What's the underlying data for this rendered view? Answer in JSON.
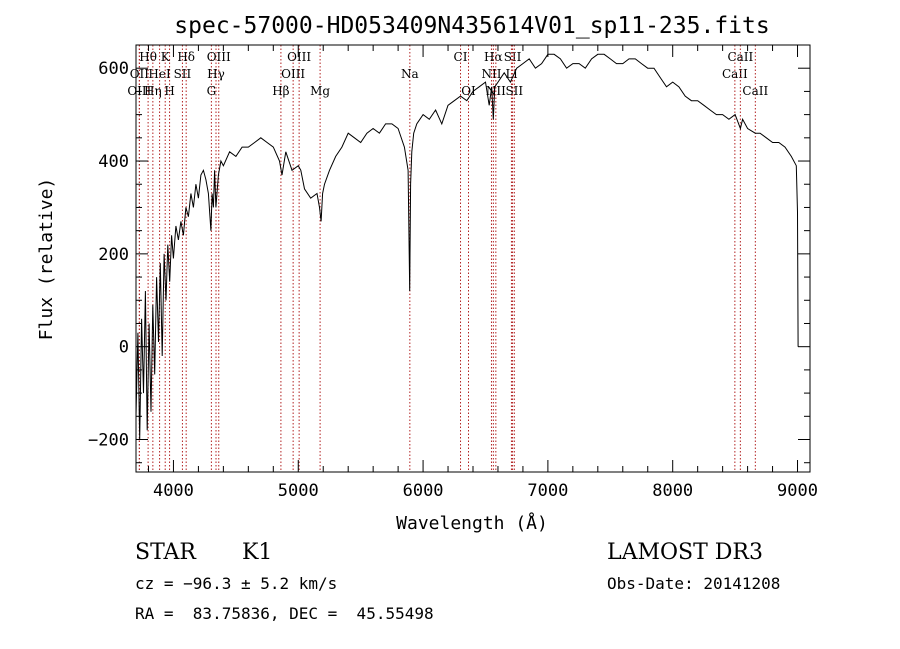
{
  "chart_data": {
    "type": "line",
    "title": "spec-57000-HD053409N435614V01_sp11-235.fits",
    "xlabel": "Wavelength (Å)",
    "ylabel": "Flux (relative)",
    "xlim": [
      3700,
      9100
    ],
    "ylim": [
      -270,
      650
    ],
    "xticks": [
      4000,
      5000,
      6000,
      7000,
      8000,
      9000
    ],
    "xtick_labels": [
      "4000",
      "5000",
      "6000",
      "7000",
      "8000",
      "9000"
    ],
    "yticks": [
      -200,
      0,
      200,
      400,
      600
    ],
    "ytick_labels": [
      "−200",
      "0",
      "200",
      "400",
      "600"
    ],
    "series": [
      {
        "name": "flux",
        "x": [
          3700,
          3715,
          3730,
          3745,
          3760,
          3775,
          3790,
          3805,
          3820,
          3835,
          3850,
          3865,
          3880,
          3895,
          3910,
          3925,
          3940,
          3955,
          3970,
          3985,
          4000,
          4020,
          4040,
          4060,
          4080,
          4100,
          4120,
          4140,
          4160,
          4180,
          4200,
          4220,
          4240,
          4260,
          4280,
          4300,
          4310,
          4320,
          4330,
          4340,
          4360,
          4380,
          4400,
          4450,
          4500,
          4550,
          4600,
          4650,
          4700,
          4750,
          4800,
          4850,
          4870,
          4900,
          4950,
          5000,
          5020,
          5050,
          5100,
          5150,
          5170,
          5183,
          5195,
          5210,
          5250,
          5300,
          5350,
          5400,
          5450,
          5500,
          5550,
          5600,
          5650,
          5700,
          5750,
          5800,
          5850,
          5880,
          5893,
          5900,
          5910,
          5925,
          5950,
          6000,
          6050,
          6100,
          6150,
          6200,
          6250,
          6300,
          6350,
          6400,
          6450,
          6500,
          6530,
          6550,
          6563,
          6575,
          6600,
          6650,
          6700,
          6750,
          6800,
          6850,
          6900,
          6950,
          7000,
          7050,
          7100,
          7150,
          7200,
          7250,
          7300,
          7350,
          7400,
          7450,
          7500,
          7550,
          7600,
          7650,
          7700,
          7750,
          7800,
          7850,
          7900,
          7950,
          8000,
          8050,
          8100,
          8150,
          8200,
          8250,
          8300,
          8350,
          8400,
          8450,
          8500,
          8542,
          8560,
          8600,
          8662,
          8700,
          8750,
          8800,
          8850,
          8900,
          8950,
          8990,
          9000,
          9005
        ],
        "y": [
          -150,
          30,
          -200,
          60,
          -100,
          120,
          -180,
          50,
          -140,
          90,
          -60,
          150,
          10,
          180,
          -20,
          200,
          100,
          220,
          140,
          240,
          190,
          260,
          230,
          270,
          240,
          300,
          280,
          330,
          300,
          350,
          320,
          370,
          380,
          360,
          330,
          250,
          330,
          300,
          380,
          300,
          370,
          400,
          390,
          420,
          410,
          430,
          430,
          440,
          450,
          440,
          430,
          400,
          370,
          420,
          380,
          390,
          380,
          340,
          320,
          330,
          300,
          270,
          330,
          350,
          380,
          410,
          430,
          460,
          450,
          440,
          460,
          470,
          460,
          480,
          480,
          470,
          430,
          380,
          120,
          350,
          420,
          460,
          480,
          500,
          490,
          510,
          480,
          520,
          530,
          540,
          530,
          550,
          560,
          570,
          520,
          560,
          490,
          560,
          570,
          590,
          570,
          600,
          610,
          620,
          600,
          610,
          630,
          630,
          620,
          600,
          610,
          610,
          600,
          620,
          630,
          630,
          620,
          610,
          610,
          620,
          620,
          610,
          600,
          600,
          580,
          560,
          570,
          560,
          540,
          530,
          530,
          520,
          510,
          500,
          500,
          490,
          500,
          470,
          490,
          470,
          460,
          460,
          450,
          440,
          440,
          430,
          410,
          390,
          290,
          0
        ]
      }
    ],
    "lines": [
      {
        "label": "OII",
        "wavelength": 3727,
        "row": 2
      },
      {
        "label": "OIII",
        "wavelength": 3727,
        "row": 3
      },
      {
        "label": "Hθ",
        "wavelength": 3797,
        "row": 1
      },
      {
        "label": "Hη",
        "wavelength": 3835,
        "row": 3
      },
      {
        "label": "HeI",
        "wavelength": 3889,
        "row": 2
      },
      {
        "label": "K",
        "wavelength": 3934,
        "row": 1
      },
      {
        "label": "H",
        "wavelength": 3969,
        "row": 3
      },
      {
        "label": "SII",
        "wavelength": 4072,
        "row": 2
      },
      {
        "label": "Hδ",
        "wavelength": 4102,
        "row": 1
      },
      {
        "label": "G",
        "wavelength": 4304,
        "row": 3
      },
      {
        "label": "Hγ",
        "wavelength": 4341,
        "row": 2
      },
      {
        "label": "OIII",
        "wavelength": 4363,
        "row": 1
      },
      {
        "label": "Hβ",
        "wavelength": 4861,
        "row": 3
      },
      {
        "label": "OIII",
        "wavelength": 4959,
        "row": 2
      },
      {
        "label": "OIII",
        "wavelength": 5007,
        "row": 1
      },
      {
        "label": "Mg",
        "wavelength": 5175,
        "row": 3
      },
      {
        "label": "Na",
        "wavelength": 5894,
        "row": 2
      },
      {
        "label": "CI",
        "wavelength": 6300,
        "row": 1
      },
      {
        "label": "OI",
        "wavelength": 6364,
        "row": 3
      },
      {
        "label": "NII",
        "wavelength": 6548,
        "row": 2
      },
      {
        "label": "Hα",
        "wavelength": 6563,
        "row": 1
      },
      {
        "label": "NII",
        "wavelength": 6583,
        "row": 3
      },
      {
        "label": "SII",
        "wavelength": 6717,
        "row": 1
      },
      {
        "label": "Li",
        "wavelength": 6708,
        "row": 2
      },
      {
        "label": "SII",
        "wavelength": 6731,
        "row": 3
      },
      {
        "label": "CaII",
        "wavelength": 8498,
        "row": 2
      },
      {
        "label": "CaII",
        "wavelength": 8542,
        "row": 1
      },
      {
        "label": "CaII",
        "wavelength": 8662,
        "row": 3
      }
    ]
  },
  "info": {
    "class_label": "STAR",
    "subclass": "K1",
    "survey": "LAMOST DR3",
    "cz": "cz = −96.3 ± 5.2 km/s",
    "obs_date": "Obs-Date: 20141208",
    "coords": "RA =  83.75836, DEC =  45.55498"
  }
}
